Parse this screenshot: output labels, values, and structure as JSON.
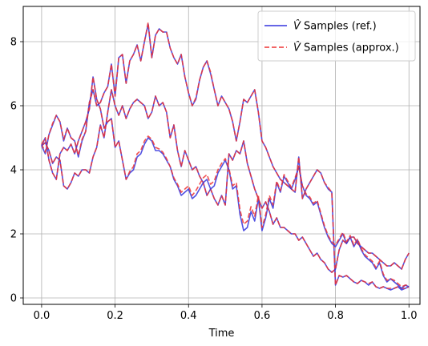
{
  "chart_data": {
    "type": "line",
    "xlabel": "Time",
    "ylabel": "",
    "xlim": [
      -0.05,
      1.03
    ],
    "ylim": [
      -0.2,
      9.1
    ],
    "xticks": [
      0.0,
      0.2,
      0.4,
      0.6,
      0.8,
      1.0
    ],
    "xtick_labels": [
      "0.0",
      "0.2",
      "0.4",
      "0.6",
      "0.8",
      "1.0"
    ],
    "yticks": [
      0,
      2,
      4,
      6,
      8
    ],
    "ytick_labels": [
      "0",
      "2",
      "4",
      "6",
      "8"
    ],
    "grid": true,
    "legend_position": "top-right",
    "series_styles": [
      {
        "name": "V̂ Samples (ref.)",
        "color": "#3333dd",
        "dash": "solid"
      },
      {
        "name": "V̂ Samples (approx.)",
        "color": "#ee3333",
        "dash": "dashed"
      }
    ],
    "paths": [
      {
        "x": [
          0.0,
          0.01,
          0.02,
          0.03,
          0.04,
          0.05,
          0.06,
          0.07,
          0.08,
          0.09,
          0.1,
          0.11,
          0.12,
          0.13,
          0.14,
          0.15,
          0.16,
          0.17,
          0.18,
          0.19,
          0.2,
          0.21,
          0.22,
          0.23,
          0.24,
          0.25,
          0.26,
          0.27,
          0.28,
          0.29,
          0.3,
          0.31,
          0.32,
          0.33,
          0.34,
          0.35,
          0.36,
          0.37,
          0.38,
          0.39,
          0.4,
          0.41,
          0.42,
          0.43,
          0.44,
          0.45,
          0.46,
          0.47,
          0.48,
          0.49,
          0.5,
          0.51,
          0.52,
          0.53,
          0.54,
          0.55,
          0.56,
          0.57,
          0.58,
          0.59,
          0.6,
          0.61,
          0.62,
          0.63,
          0.64,
          0.65,
          0.66,
          0.67,
          0.68,
          0.69,
          0.7,
          0.71,
          0.72,
          0.73,
          0.74,
          0.75,
          0.76,
          0.77,
          0.78,
          0.79,
          0.8,
          0.81,
          0.82,
          0.83,
          0.84,
          0.85,
          0.86,
          0.87,
          0.88,
          0.89,
          0.9,
          0.91,
          0.92,
          0.93,
          0.94,
          0.95,
          0.96,
          0.97,
          0.98,
          0.99,
          1.0
        ],
        "ref": [
          4.75,
          4.5,
          5.1,
          5.4,
          5.7,
          5.5,
          4.9,
          5.3,
          5.0,
          4.9,
          4.4,
          4.9,
          5.2,
          6.1,
          6.5,
          6.0,
          6.1,
          6.4,
          6.6,
          7.3,
          6.3,
          7.5,
          7.6,
          6.7,
          7.4,
          7.6,
          7.9,
          7.4,
          8.0,
          8.55,
          7.5,
          8.2,
          8.4,
          8.3,
          8.3,
          7.8,
          7.5,
          7.3,
          7.6,
          6.9,
          6.4,
          6.0,
          6.2,
          6.8,
          7.2,
          7.4,
          7.0,
          6.5,
          6.0,
          6.3,
          6.1,
          5.9,
          5.5,
          4.9,
          5.5,
          6.2,
          6.1,
          6.3,
          6.5,
          5.8,
          4.9,
          4.7,
          4.4,
          4.1,
          3.9,
          3.7,
          3.6,
          3.5,
          3.4,
          3.3,
          4.4,
          3.1,
          3.4,
          3.6,
          3.8,
          4.0,
          3.9,
          3.6,
          3.4,
          3.3,
          0.4,
          0.7,
          0.65,
          0.7,
          0.6,
          0.5,
          0.45,
          0.55,
          0.5,
          0.4,
          0.5,
          0.35,
          0.3,
          0.35,
          0.3,
          0.25,
          0.3,
          0.35,
          0.25,
          0.3,
          0.35
        ],
        "approx": [
          4.8,
          4.55,
          5.1,
          5.45,
          5.7,
          5.5,
          4.95,
          5.3,
          5.0,
          4.9,
          4.45,
          4.95,
          5.2,
          6.1,
          6.5,
          6.0,
          6.1,
          6.4,
          6.6,
          7.3,
          6.3,
          7.5,
          7.6,
          6.7,
          7.4,
          7.6,
          7.9,
          7.4,
          8.0,
          8.6,
          7.5,
          8.2,
          8.4,
          8.3,
          8.3,
          7.8,
          7.5,
          7.3,
          7.6,
          6.9,
          6.4,
          6.0,
          6.25,
          6.8,
          7.2,
          7.4,
          7.05,
          6.5,
          6.0,
          6.3,
          6.1,
          5.9,
          5.5,
          4.9,
          5.5,
          6.2,
          6.1,
          6.3,
          6.5,
          5.8,
          4.9,
          4.7,
          4.4,
          4.1,
          3.9,
          3.7,
          3.6,
          3.5,
          3.4,
          3.3,
          4.4,
          3.1,
          3.4,
          3.6,
          3.8,
          4.0,
          3.9,
          3.6,
          3.45,
          3.3,
          0.4,
          0.7,
          0.65,
          0.7,
          0.6,
          0.5,
          0.45,
          0.55,
          0.5,
          0.45,
          0.5,
          0.35,
          0.3,
          0.35,
          0.3,
          0.3,
          0.3,
          0.35,
          0.3,
          0.3,
          0.35
        ]
      },
      {
        "x": [
          0.0,
          0.01,
          0.02,
          0.03,
          0.04,
          0.05,
          0.06,
          0.07,
          0.08,
          0.09,
          0.1,
          0.11,
          0.12,
          0.13,
          0.14,
          0.15,
          0.16,
          0.17,
          0.18,
          0.19,
          0.2,
          0.21,
          0.22,
          0.23,
          0.24,
          0.25,
          0.26,
          0.27,
          0.28,
          0.29,
          0.3,
          0.31,
          0.32,
          0.33,
          0.34,
          0.35,
          0.36,
          0.37,
          0.38,
          0.39,
          0.4,
          0.41,
          0.42,
          0.43,
          0.44,
          0.45,
          0.46,
          0.47,
          0.48,
          0.49,
          0.5,
          0.51,
          0.52,
          0.53,
          0.54,
          0.55,
          0.56,
          0.57,
          0.58,
          0.59,
          0.6,
          0.61,
          0.62,
          0.63,
          0.64,
          0.65,
          0.66,
          0.67,
          0.68,
          0.69,
          0.7,
          0.71,
          0.72,
          0.73,
          0.74,
          0.75,
          0.76,
          0.77,
          0.78,
          0.79,
          0.8,
          0.81,
          0.82,
          0.83,
          0.84,
          0.85,
          0.86,
          0.87,
          0.88,
          0.89,
          0.9,
          0.91,
          0.92,
          0.93,
          0.94,
          0.95,
          0.96,
          0.97,
          0.98,
          0.99,
          1.0
        ],
        "ref": [
          4.75,
          4.85,
          4.6,
          4.2,
          4.4,
          4.3,
          3.5,
          3.4,
          3.6,
          3.9,
          3.8,
          4.0,
          4.0,
          3.9,
          4.4,
          4.7,
          5.4,
          5.0,
          5.8,
          6.5,
          6.0,
          5.7,
          6.0,
          5.6,
          5.9,
          6.1,
          6.2,
          6.1,
          6.0,
          5.6,
          5.8,
          6.3,
          6.0,
          6.1,
          5.8,
          5.0,
          5.4,
          4.6,
          4.1,
          4.6,
          4.3,
          4.0,
          4.1,
          3.8,
          3.6,
          3.2,
          3.4,
          3.1,
          2.9,
          3.2,
          2.9,
          4.5,
          4.3,
          4.6,
          4.5,
          4.9,
          4.2,
          3.8,
          3.4,
          3.1,
          2.8,
          3.0,
          2.7,
          2.3,
          2.5,
          2.2,
          2.2,
          2.1,
          2.0,
          2.0,
          1.8,
          1.9,
          1.7,
          1.5,
          1.3,
          1.4,
          1.2,
          1.1,
          0.9,
          0.8,
          0.9,
          1.5,
          1.8,
          1.7,
          1.9,
          1.9,
          1.7,
          1.6,
          1.5,
          1.4,
          1.4,
          1.3,
          1.2,
          1.1,
          1.0,
          1.0,
          1.1,
          1.0,
          0.9,
          1.2,
          1.4
        ]
      },
      {
        "x": [
          0.0,
          0.01,
          0.02,
          0.03,
          0.04,
          0.05,
          0.06,
          0.07,
          0.08,
          0.09,
          0.1,
          0.11,
          0.12,
          0.13,
          0.14,
          0.15,
          0.16,
          0.17,
          0.18,
          0.19,
          0.2,
          0.21,
          0.22,
          0.23,
          0.24,
          0.25,
          0.26,
          0.27,
          0.28,
          0.29,
          0.3,
          0.31,
          0.32,
          0.33,
          0.34,
          0.35,
          0.36,
          0.37,
          0.38,
          0.39,
          0.4,
          0.41,
          0.42,
          0.43,
          0.44,
          0.45,
          0.46,
          0.47,
          0.48,
          0.49,
          0.5,
          0.51,
          0.52,
          0.53,
          0.54,
          0.55,
          0.56,
          0.57,
          0.58,
          0.59,
          0.6,
          0.61,
          0.62,
          0.63,
          0.64,
          0.65,
          0.66,
          0.67,
          0.68,
          0.69,
          0.7,
          0.71,
          0.72,
          0.73,
          0.74,
          0.75,
          0.76,
          0.77,
          0.78,
          0.79,
          0.8,
          0.81,
          0.82,
          0.83,
          0.84,
          0.85,
          0.86,
          0.87,
          0.88,
          0.89,
          0.9,
          0.91,
          0.92,
          0.93,
          0.94,
          0.95,
          0.96,
          0.97,
          0.98,
          0.99,
          1.0
        ],
        "ref": [
          4.75,
          5.0,
          4.3,
          3.9,
          3.7,
          4.5,
          4.7,
          4.6,
          4.8,
          4.5,
          4.9,
          5.2,
          5.5,
          5.9,
          6.9,
          6.2,
          5.9,
          5.3,
          5.5,
          5.6,
          4.7,
          4.9,
          4.3,
          3.7,
          3.9,
          4.0,
          4.4,
          4.5,
          4.8,
          5.0,
          4.9,
          4.6,
          4.6,
          4.5,
          4.3,
          4.1,
          3.7,
          3.5,
          3.2,
          3.3,
          3.4,
          3.1,
          3.2,
          3.4,
          3.6,
          3.7,
          3.4,
          3.5,
          3.9,
          4.1,
          4.3,
          4.0,
          3.4,
          3.5,
          2.6,
          2.1,
          2.2,
          2.7,
          2.4,
          3.1,
          2.1,
          2.5,
          3.1,
          2.8,
          3.6,
          3.3,
          3.8,
          3.6,
          3.4,
          3.7,
          4.1,
          3.5,
          3.2,
          3.1,
          2.9,
          3.0,
          2.6,
          2.2,
          1.9,
          1.7,
          1.6,
          1.8,
          2.0,
          1.7,
          1.9,
          1.6,
          1.8,
          1.5,
          1.3,
          1.2,
          1.1,
          0.9,
          1.1,
          0.7,
          0.5,
          0.6,
          0.5,
          0.4,
          0.3,
          0.4,
          0.35
        ],
        "approx": [
          4.8,
          5.0,
          4.3,
          3.9,
          3.7,
          4.5,
          4.7,
          4.6,
          4.8,
          4.5,
          4.9,
          5.2,
          5.5,
          5.9,
          6.9,
          6.2,
          5.9,
          5.3,
          5.5,
          5.6,
          4.7,
          4.9,
          4.3,
          3.7,
          3.95,
          4.1,
          4.5,
          4.6,
          4.9,
          5.05,
          4.95,
          4.7,
          4.65,
          4.55,
          4.35,
          4.1,
          3.75,
          3.55,
          3.3,
          3.4,
          3.5,
          3.2,
          3.35,
          3.55,
          3.75,
          3.85,
          3.55,
          3.65,
          4.0,
          4.2,
          4.35,
          4.05,
          3.5,
          3.6,
          2.75,
          2.3,
          2.4,
          2.85,
          2.55,
          3.2,
          2.2,
          2.6,
          3.2,
          2.9,
          3.65,
          3.35,
          3.85,
          3.65,
          3.45,
          3.75,
          4.1,
          3.5,
          3.25,
          3.15,
          2.95,
          3.05,
          2.65,
          2.25,
          1.95,
          1.75,
          1.65,
          1.85,
          2.05,
          1.75,
          1.95,
          1.65,
          1.85,
          1.55,
          1.35,
          1.25,
          1.15,
          0.95,
          1.15,
          0.75,
          0.55,
          0.6,
          0.55,
          0.45,
          0.35,
          0.4,
          0.4
        ]
      }
    ],
    "series": [
      {
        "name": "V̂ Samples (ref.)"
      },
      {
        "name": "V̂ Samples (approx.)"
      }
    ]
  },
  "legend": {
    "items": [
      {
        "hat": "V̂",
        "label": " Samples (ref.)",
        "color": "#3333dd"
      },
      {
        "hat": "V̂",
        "label": " Samples (approx.)",
        "color": "#ee3333"
      }
    ]
  }
}
